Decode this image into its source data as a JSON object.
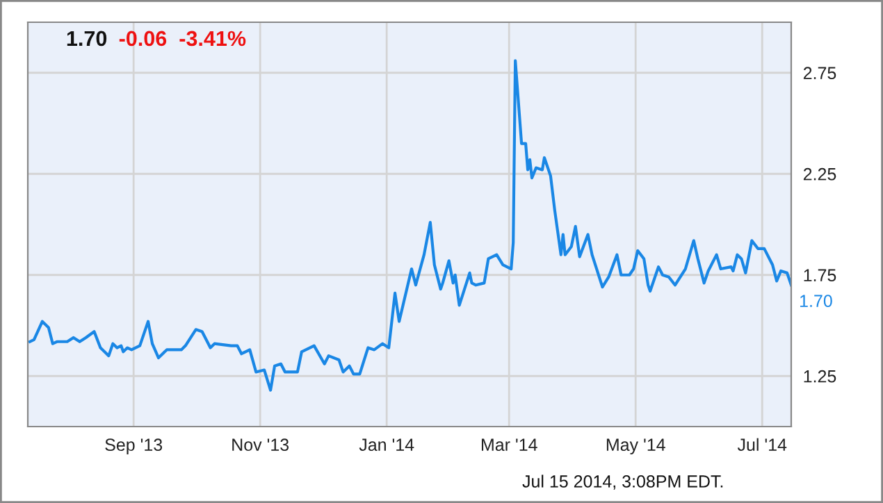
{
  "chart_data": {
    "type": "line",
    "title": "1.70",
    "subtitle": "-0.06  -3.41%",
    "x": [
      "2013-07-13",
      "2013-07-15",
      "2013-07-19",
      "2013-07-22",
      "2013-07-24",
      "2013-07-26",
      "2013-07-31",
      "2013-08-03",
      "2013-08-06",
      "2013-08-09",
      "2013-08-13",
      "2013-08-16",
      "2013-08-20",
      "2013-08-22",
      "2013-08-24",
      "2013-08-26",
      "2013-08-27",
      "2013-08-29",
      "2013-08-31",
      "2013-09-04",
      "2013-09-08",
      "2013-09-10",
      "2013-09-13",
      "2013-09-16",
      "2013-09-17",
      "2013-09-24",
      "2013-09-26",
      "2013-10-01",
      "2013-10-04",
      "2013-10-08",
      "2013-10-10",
      "2013-10-18",
      "2013-10-21",
      "2013-10-23",
      "2013-10-27",
      "2013-10-30",
      "2013-11-03",
      "2013-11-06",
      "2013-11-08",
      "2013-11-11",
      "2013-11-13",
      "2013-11-15",
      "2013-11-19",
      "2013-11-21",
      "2013-11-27",
      "2013-12-02",
      "2013-12-04",
      "2013-12-09",
      "2013-12-11",
      "2013-12-14",
      "2013-12-16",
      "2013-12-19",
      "2013-12-23",
      "2013-12-26",
      "2013-12-30",
      "2014-01-02",
      "2014-01-05",
      "2014-01-07",
      "2014-01-13",
      "2014-01-15",
      "2014-01-19",
      "2014-01-22",
      "2014-01-24",
      "2014-01-27",
      "2014-01-28",
      "2014-01-31",
      "2014-02-02",
      "2014-02-03",
      "2014-02-05",
      "2014-02-10",
      "2014-02-11",
      "2014-02-13",
      "2014-02-17",
      "2014-02-19",
      "2014-02-23",
      "2014-02-26",
      "2014-03-02",
      "2014-03-03",
      "2014-03-04",
      "2014-03-07",
      "2014-03-09",
      "2014-03-10",
      "2014-03-11",
      "2014-03-12",
      "2014-03-14",
      "2014-03-17",
      "2014-03-18",
      "2014-03-21",
      "2014-03-23",
      "2014-03-26",
      "2014-03-27",
      "2014-03-28",
      "2014-03-31",
      "2014-04-02",
      "2014-04-04",
      "2014-04-08",
      "2014-04-10",
      "2014-04-15",
      "2014-04-18",
      "2014-04-22",
      "2014-04-24",
      "2014-04-28",
      "2014-04-30",
      "2014-05-02",
      "2014-05-05",
      "2014-05-07",
      "2014-05-08",
      "2014-05-12",
      "2014-05-14",
      "2014-05-17",
      "2014-05-20",
      "2014-05-25",
      "2014-05-29",
      "2014-05-31",
      "2014-06-03",
      "2014-06-05",
      "2014-06-09",
      "2014-06-11",
      "2014-06-16",
      "2014-06-17",
      "2014-06-19",
      "2014-06-21",
      "2014-06-23",
      "2014-06-26",
      "2014-06-29",
      "2014-07-02",
      "2014-07-06",
      "2014-07-08",
      "2014-07-10",
      "2014-07-13",
      "2014-07-15"
    ],
    "series": [
      {
        "color": "#1a87e5",
        "values": [
          1.42,
          1.43,
          1.52,
          1.49,
          1.41,
          1.42,
          1.42,
          1.44,
          1.42,
          1.44,
          1.47,
          1.39,
          1.35,
          1.41,
          1.39,
          1.4,
          1.37,
          1.39,
          1.38,
          1.4,
          1.52,
          1.41,
          1.34,
          1.37,
          1.38,
          1.38,
          1.4,
          1.48,
          1.47,
          1.39,
          1.41,
          1.4,
          1.4,
          1.36,
          1.38,
          1.27,
          1.28,
          1.18,
          1.3,
          1.31,
          1.27,
          1.27,
          1.27,
          1.37,
          1.4,
          1.31,
          1.35,
          1.33,
          1.27,
          1.3,
          1.26,
          1.26,
          1.39,
          1.38,
          1.41,
          1.39,
          1.66,
          1.52,
          1.78,
          1.7,
          1.85,
          2.01,
          1.8,
          1.68,
          1.71,
          1.82,
          1.71,
          1.75,
          1.6,
          1.76,
          1.71,
          1.7,
          1.71,
          1.83,
          1.85,
          1.8,
          1.78,
          1.91,
          2.81,
          2.4,
          2.4,
          2.27,
          2.32,
          2.23,
          2.28,
          2.27,
          2.33,
          2.24,
          2.07,
          1.85,
          1.95,
          1.85,
          1.89,
          1.99,
          1.84,
          1.95,
          1.85,
          1.69,
          1.74,
          1.85,
          1.75,
          1.75,
          1.78,
          1.87,
          1.83,
          1.7,
          1.67,
          1.79,
          1.75,
          1.74,
          1.7,
          1.78,
          1.92,
          1.83,
          1.71,
          1.77,
          1.85,
          1.78,
          1.79,
          1.77,
          1.85,
          1.83,
          1.76,
          1.92,
          1.88,
          1.88,
          1.8,
          1.72,
          1.77,
          1.76,
          1.7
        ]
      }
    ],
    "xlim": [
      "2013-07-12",
      "2014-07-15"
    ],
    "xticks": [
      {
        "value": "2013-09-01",
        "label": "Sep '13"
      },
      {
        "value": "2013-11-01",
        "label": "Nov '13"
      },
      {
        "value": "2014-01-01",
        "label": "Jan '14"
      },
      {
        "value": "2014-03-01",
        "label": "Mar '14"
      },
      {
        "value": "2014-05-01",
        "label": "May '14"
      },
      {
        "value": "2014-07-01",
        "label": "Jul '14"
      }
    ],
    "ylim": [
      1.0,
      3.0
    ],
    "yticks": [
      1.25,
      1.75,
      2.25,
      2.75
    ],
    "grid": true,
    "legend": false,
    "marker": "none",
    "line_style": "solid",
    "annotations": [
      "Jul 15 2014, 3:08PM EDT.",
      {
        "text": "1.70",
        "x": "2014-07-15",
        "y": 1.7
      }
    ]
  }
}
